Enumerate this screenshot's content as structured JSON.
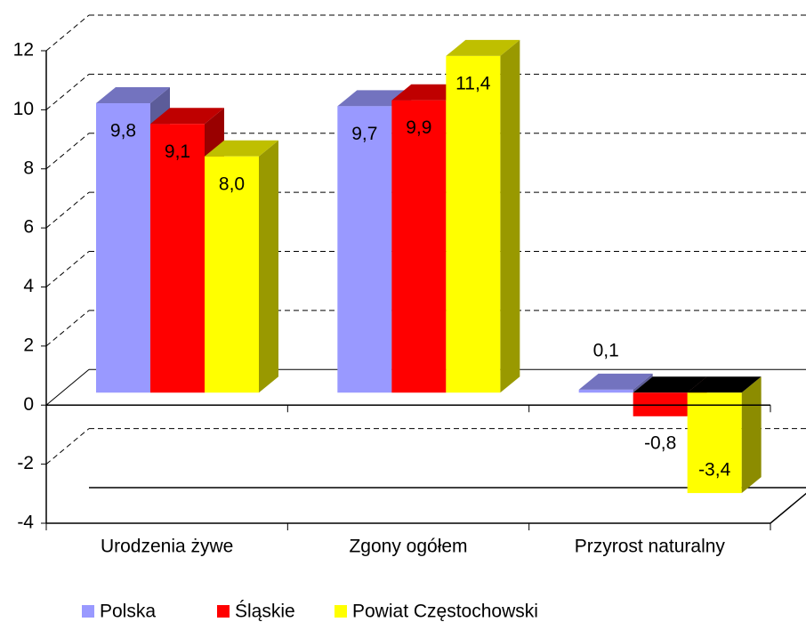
{
  "chart_data": {
    "type": "bar3d",
    "categories": [
      "Urodzenia żywe",
      "Zgony ogółem",
      "Przyrost naturalny"
    ],
    "series": [
      {
        "name": "Polska",
        "color": "#9999ff",
        "values": [
          9.8,
          9.7,
          0.1
        ],
        "value_labels": [
          "9,8",
          "9,7",
          "0,1"
        ]
      },
      {
        "name": "Śląskie",
        "color": "#ff0000",
        "values": [
          9.1,
          9.9,
          -0.8
        ],
        "value_labels": [
          "9,1",
          "9,9",
          "-0,8"
        ]
      },
      {
        "name": "Powiat Częstochowski",
        "color": "#ffff00",
        "values": [
          8.0,
          11.4,
          -3.4
        ],
        "value_labels": [
          "8,0",
          "11,4",
          "-3,4"
        ]
      }
    ],
    "ylim": [
      -4,
      12
    ],
    "yticks": [
      -4,
      -2,
      0,
      2,
      4,
      6,
      8,
      10,
      12
    ],
    "grid": true,
    "legend": "bottom"
  }
}
